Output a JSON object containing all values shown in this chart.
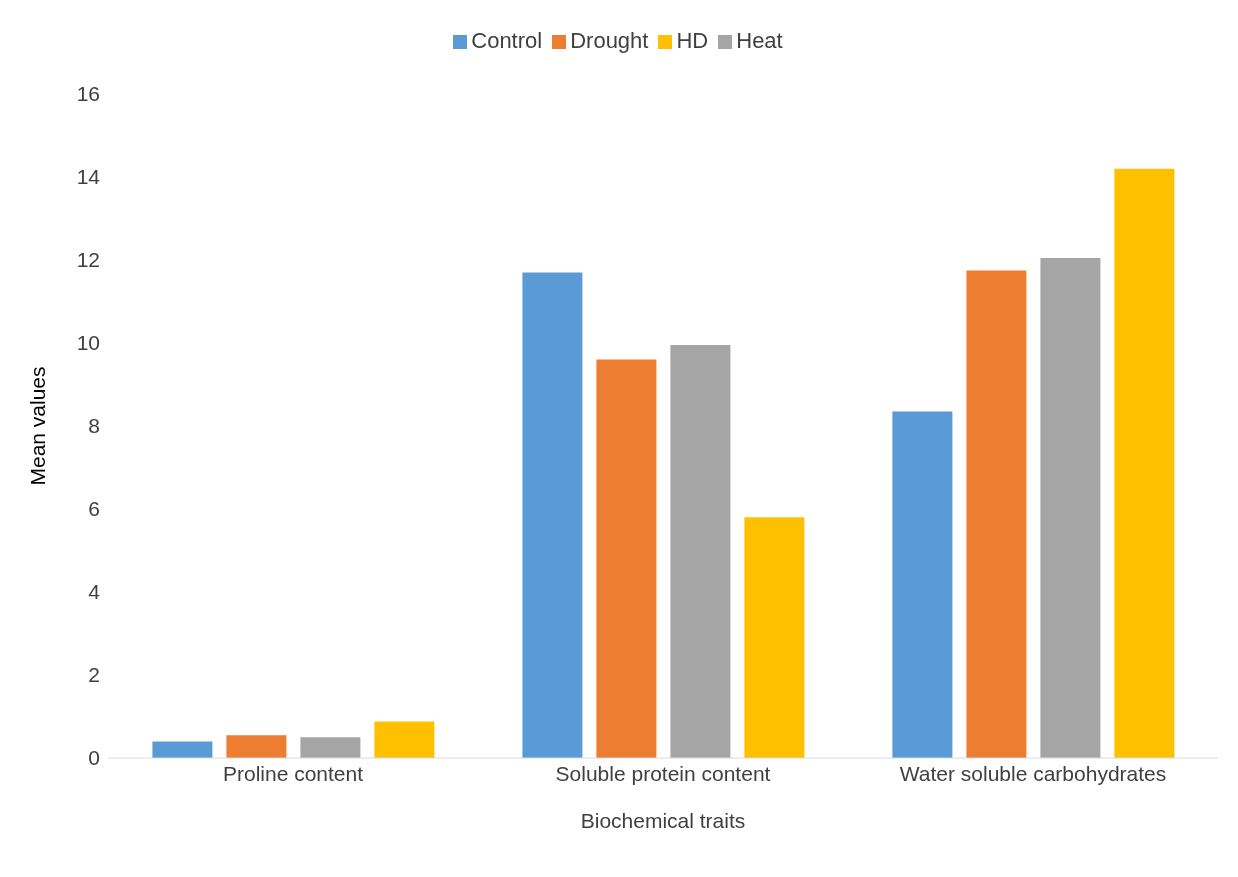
{
  "chart_data": {
    "type": "bar",
    "xlabel": "Biochemical traits",
    "ylabel": "Mean values",
    "categories": [
      "Proline content",
      "Soluble protein content",
      "Water soluble carbohydrates"
    ],
    "series": [
      {
        "name": "Control",
        "color": "#5b9bd5",
        "values": [
          0.4,
          11.7,
          8.35
        ]
      },
      {
        "name": "Drought",
        "color": "#ed7d31",
        "values": [
          0.55,
          9.6,
          11.75
        ]
      },
      {
        "name": "Heat",
        "color": "#a5a5a5",
        "values": [
          0.5,
          9.95,
          12.05
        ]
      },
      {
        "name": "HD",
        "color": "#ffc000",
        "values": [
          0.88,
          5.8,
          14.2
        ]
      }
    ],
    "ylim": [
      0,
      16
    ],
    "yticks": [
      0,
      2,
      4,
      6,
      8,
      10,
      12,
      14,
      16
    ],
    "grid": false,
    "legend": "top"
  }
}
